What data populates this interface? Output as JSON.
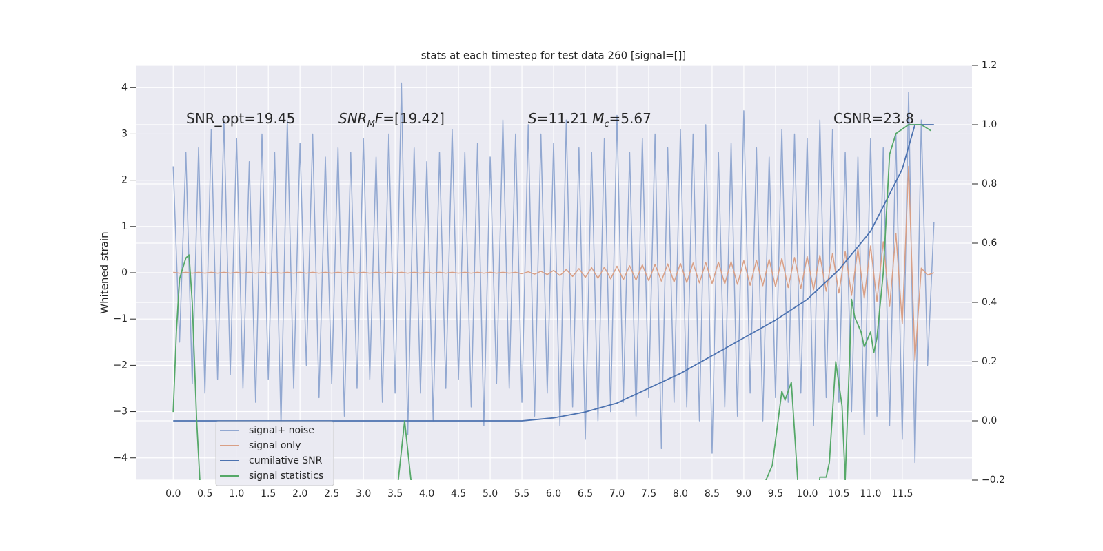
{
  "chart_data": {
    "type": "line",
    "title": "stats at each timestep for test data 260 [signal=[]]",
    "y_label": "Whitened strain",
    "annotations": [
      [
        "SNR_opt=19.45"
      ],
      [
        "SNR",
        "M",
        "F",
        "=[19.42]"
      ],
      [
        "S",
        "=11.21 ",
        "M",
        "c",
        "=5.67"
      ],
      [
        "CSNR=23.8"
      ]
    ],
    "xlim": [
      -0.59,
      12.6
    ],
    "ylim": [
      -4.48,
      4.48
    ],
    "y2lim": [
      -0.2,
      1.2
    ],
    "xticks": [
      {
        "value": 0,
        "label": "0.0"
      },
      0.5,
      {
        "value": 1,
        "label": "1.0"
      },
      1.5,
      {
        "value": 2,
        "label": "2.0"
      },
      2.5,
      {
        "value": 3,
        "label": "3.0"
      },
      3.5,
      {
        "value": 4,
        "label": "4.0"
      },
      4.5,
      {
        "value": 5,
        "label": "5.0"
      },
      5.5,
      {
        "value": 6,
        "label": "6.0"
      },
      6.5,
      {
        "value": 7,
        "label": "7.0"
      },
      7.5,
      {
        "value": 8,
        "label": "8.0"
      },
      8.5,
      {
        "value": 9,
        "label": "9.0"
      },
      9.5,
      {
        "value": 10,
        "label": "10.0"
      },
      10.5,
      {
        "value": 11,
        "label": "11.0"
      },
      11.5
    ],
    "yticks": [
      {
        "value": -4,
        "label": "−4"
      },
      {
        "value": -3,
        "label": "−3"
      },
      {
        "value": -2,
        "label": "−2"
      },
      {
        "value": -1,
        "label": "−1"
      },
      0,
      1,
      2,
      3,
      4
    ],
    "y2ticks": [
      {
        "value": -0.2,
        "label": "−0.2"
      },
      {
        "value": 0,
        "label": "0.0"
      },
      0.2,
      0.4,
      0.6,
      0.8,
      {
        "value": 1,
        "label": "1.0"
      },
      1.2
    ],
    "grid": true,
    "legend": "lower left",
    "x": [
      0,
      0.1,
      0.2,
      0.3,
      0.4,
      0.5,
      0.6,
      0.7,
      0.8,
      0.9,
      1,
      1.1,
      1.2,
      1.3,
      1.4,
      1.5,
      1.6,
      1.7,
      1.8,
      1.9,
      2,
      2.1,
      2.2,
      2.3,
      2.4,
      2.5,
      2.6,
      2.7,
      2.8,
      2.9,
      3,
      3.1,
      3.2,
      3.3,
      3.4,
      3.5,
      3.6,
      3.7,
      3.8,
      3.9,
      4,
      4.1,
      4.2,
      4.3,
      4.4,
      4.5,
      4.6,
      4.7,
      4.8,
      4.9,
      5,
      5.1,
      5.2,
      5.3,
      5.4,
      5.5,
      5.6,
      5.7,
      5.8,
      5.9,
      6,
      6.1,
      6.2,
      6.3,
      6.4,
      6.5,
      6.6,
      6.7,
      6.8,
      6.9,
      7,
      7.1,
      7.2,
      7.3,
      7.4,
      7.5,
      7.6,
      7.7,
      7.8,
      7.9,
      8,
      8.1,
      8.2,
      8.3,
      8.4,
      8.5,
      8.6,
      8.7,
      8.8,
      8.9,
      9,
      9.1,
      9.2,
      9.3,
      9.4,
      9.5,
      9.6,
      9.7,
      9.8,
      9.9,
      10,
      10.1,
      10.2,
      10.3,
      10.4,
      10.5,
      10.6,
      10.7,
      10.8,
      10.9,
      11,
      11.1,
      11.2,
      11.3,
      11.4,
      11.5,
      11.6,
      11.7,
      11.8,
      11.9,
      12
    ],
    "series": [
      {
        "name": "signal+ noise",
        "color": "#92a8d1",
        "values": [
          2.3,
          -1.5,
          2.6,
          -2.4,
          2.7,
          -2.6,
          3.1,
          -2.3,
          3.3,
          -2.2,
          2.9,
          -2.5,
          2.4,
          -2.8,
          3.0,
          -2.3,
          2.6,
          -3.3,
          3.3,
          -2.5,
          2.8,
          -2.0,
          3.0,
          -2.7,
          2.5,
          -2.4,
          2.7,
          -3.1,
          2.6,
          -2.5,
          2.9,
          -2.3,
          2.5,
          -2.8,
          3.0,
          -2.6,
          4.1,
          -3.5,
          2.7,
          -2.6,
          2.4,
          -3.2,
          2.6,
          -2.5,
          3.1,
          -2.3,
          2.6,
          -2.9,
          2.8,
          -3.3,
          2.5,
          -2.4,
          3.3,
          -2.5,
          3.0,
          -2.8,
          3.2,
          -3.1,
          3.0,
          -2.6,
          2.8,
          -3.3,
          3.3,
          -2.9,
          2.7,
          -3.6,
          2.6,
          -3.2,
          2.9,
          -3.0,
          3.4,
          -2.8,
          2.6,
          -3.1,
          2.9,
          -2.7,
          3.0,
          -3.8,
          2.7,
          -2.8,
          3.1,
          -2.9,
          3.0,
          -3.2,
          3.2,
          -3.9,
          2.6,
          -2.9,
          2.8,
          -3.1,
          3.5,
          -2.6,
          2.7,
          -3.2,
          2.5,
          -2.7,
          3.1,
          -2.8,
          3.0,
          -2.6,
          2.9,
          -3.3,
          3.3,
          -2.7,
          3.1,
          -2.8,
          2.6,
          -3.0,
          2.5,
          -3.5,
          2.9,
          -3.1,
          2.7,
          -3.3,
          3.0,
          -3.6,
          3.9,
          -4.1,
          3.3,
          -2.0,
          1.1
        ]
      },
      {
        "name": "signal only",
        "color": "#d99f85",
        "values": [
          0.01,
          -0.01,
          0.01,
          -0.01,
          0.01,
          -0.01,
          0.01,
          -0.01,
          0.01,
          -0.01,
          0.01,
          -0.01,
          0.01,
          -0.01,
          0.01,
          -0.01,
          0.01,
          -0.01,
          0.01,
          -0.01,
          0.01,
          -0.01,
          0.01,
          -0.01,
          0.01,
          -0.01,
          0.01,
          -0.01,
          0.01,
          -0.01,
          0.01,
          -0.01,
          0.01,
          -0.01,
          0.01,
          -0.01,
          0.01,
          -0.01,
          0.01,
          -0.01,
          0.01,
          -0.01,
          0.01,
          -0.01,
          0.01,
          -0.01,
          0.01,
          -0.01,
          0.01,
          -0.01,
          0.01,
          -0.01,
          0.01,
          -0.01,
          0.01,
          -0.02,
          0.02,
          -0.03,
          0.03,
          -0.04,
          0.05,
          -0.06,
          0.07,
          -0.08,
          0.09,
          -0.1,
          0.11,
          -0.12,
          0.12,
          -0.13,
          0.14,
          -0.15,
          0.15,
          -0.16,
          0.17,
          -0.17,
          0.18,
          -0.18,
          0.19,
          -0.2,
          0.2,
          -0.21,
          0.21,
          -0.22,
          0.22,
          -0.23,
          0.23,
          -0.24,
          0.24,
          -0.25,
          0.26,
          -0.27,
          0.27,
          -0.28,
          0.29,
          -0.3,
          0.31,
          -0.32,
          0.33,
          -0.34,
          0.35,
          -0.37,
          0.38,
          -0.4,
          0.42,
          -0.44,
          0.46,
          -0.49,
          0.52,
          -0.55,
          0.58,
          -0.62,
          0.67,
          -0.73,
          0.85,
          -1.1,
          2.3,
          -1.9,
          0.1,
          -0.05,
          0.0
        ]
      },
      {
        "name": "cumilative SNR",
        "color": "#4c72b0",
        "axis": "y2",
        "x": [
          0,
          5.5,
          6.0,
          6.5,
          7.0,
          7.5,
          8.0,
          8.5,
          9.0,
          9.5,
          10.0,
          10.5,
          11.0,
          11.5,
          11.7,
          12.0
        ],
        "values": [
          0,
          0,
          0.01,
          0.03,
          0.06,
          0.11,
          0.16,
          0.22,
          0.28,
          0.34,
          0.41,
          0.51,
          0.64,
          0.85,
          1.0,
          1.0
        ]
      },
      {
        "name": "signal statistics",
        "color": "#55a868",
        "axis": "y2",
        "x": [
          0,
          0.05,
          0.1,
          0.2,
          0.25,
          0.3,
          0.37,
          0.42,
          0.5,
          3.5,
          3.65,
          3.75,
          3.8,
          9.3,
          9.35,
          9.45,
          9.6,
          9.65,
          9.75,
          9.85,
          9.9,
          10.15,
          10.2,
          10.3,
          10.35,
          10.45,
          10.55,
          10.6,
          10.65,
          10.7,
          10.75,
          10.85,
          10.9,
          11.0,
          11.05,
          11.1,
          11.2,
          11.3,
          11.4,
          11.6,
          11.7,
          11.8,
          11.95
        ],
        "values": [
          0.03,
          0.3,
          0.48,
          0.55,
          0.56,
          0.4,
          0.0,
          -0.2,
          -0.3,
          -0.3,
          0.0,
          -0.2,
          -0.3,
          -0.3,
          -0.2,
          -0.15,
          0.1,
          0.07,
          0.13,
          -0.2,
          -0.3,
          -0.3,
          -0.19,
          -0.19,
          -0.14,
          0.2,
          0.05,
          -0.2,
          0.1,
          0.41,
          0.35,
          0.3,
          0.25,
          0.3,
          0.23,
          0.28,
          0.5,
          0.9,
          0.97,
          1.0,
          1.0,
          1.0,
          0.98
        ]
      }
    ]
  }
}
